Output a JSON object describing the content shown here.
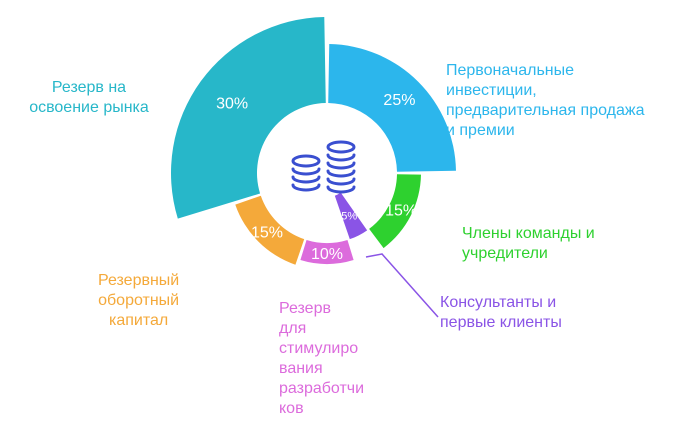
{
  "chart_data": {
    "type": "pie",
    "title": "",
    "slices": [
      {
        "label": "Первоначальные\nинвестиции,\nпредварительная продажа\nи премии",
        "value": 25,
        "value_label": "25%",
        "color": "#2cb6ec"
      },
      {
        "label": "Члены команды и\nучредители",
        "value": 15,
        "value_label": "15%",
        "color": "#2ed12f"
      },
      {
        "label": "Консультанты и\nпервые клиенты",
        "value": 5,
        "value_label": "5%",
        "color": "#8a54e6"
      },
      {
        "label": "Резерв\nдля\nстимулиро\nвания\nразработчи\nков",
        "value": 10,
        "value_label": "10%",
        "color": "#dc6bdc"
      },
      {
        "label": "Резервный\nоборотный\nкапитал",
        "value": 15,
        "value_label": "15%",
        "color": "#f4a93a"
      },
      {
        "label": "Резерв на\nосвоение рынка",
        "value": 30,
        "value_label": "30%",
        "color": "#27b7c9"
      }
    ]
  },
  "center_icon": "coins-stack-icon",
  "icon_color": "#3a4fd0",
  "value_text_color": "#ffffff"
}
